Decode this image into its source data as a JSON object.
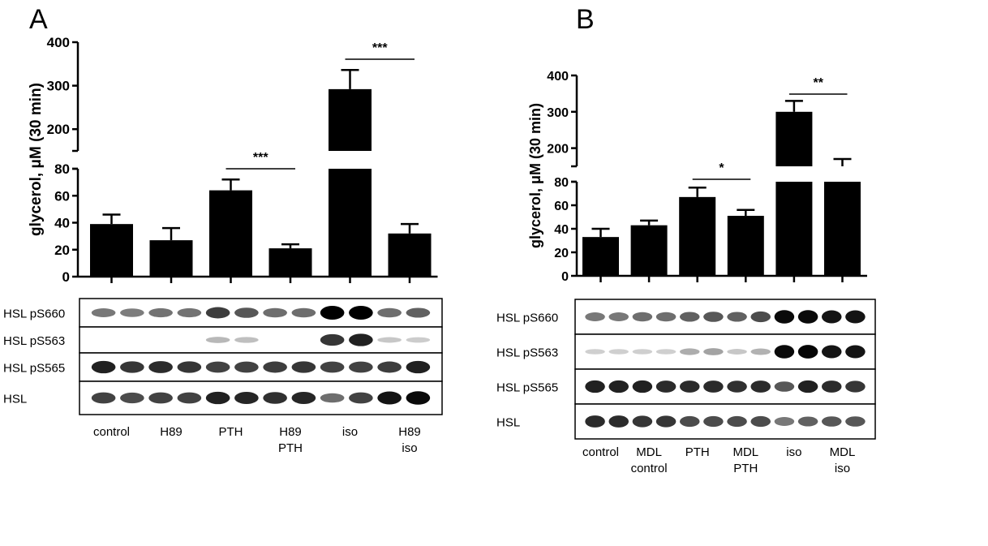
{
  "chart_data": [
    {
      "panel": "A",
      "type": "bar",
      "ylabel": "glycerol, μM (30 min)",
      "y_axis_break": {
        "lower_range": [
          0,
          80
        ],
        "upper_range": [
          150,
          400
        ]
      },
      "lower_ticks": [
        0,
        20,
        40,
        60,
        80
      ],
      "upper_ticks": [
        200,
        300,
        400
      ],
      "categories": [
        [
          "control"
        ],
        [
          "H89"
        ],
        [
          "PTH"
        ],
        [
          "H89",
          "PTH"
        ],
        [
          "iso"
        ],
        [
          "H89",
          "iso"
        ]
      ],
      "values": [
        39,
        27,
        64,
        21,
        292,
        32
      ],
      "errors": [
        7,
        9,
        8,
        3,
        44,
        7
      ],
      "significance": [
        {
          "from": 2,
          "to": 3,
          "label": "***"
        },
        {
          "from": 4,
          "to": 5,
          "label": "***"
        }
      ],
      "blot_labels": [
        "HSL pS660",
        "HSL pS563",
        "HSL pS565",
        "HSL"
      ],
      "band_intensity": [
        [
          0.45,
          0.42,
          0.47,
          0.47,
          0.72,
          0.6,
          0.5,
          0.5,
          1.0,
          1.0,
          0.5,
          0.55
        ],
        [
          0.0,
          0.0,
          0.0,
          0.0,
          0.15,
          0.12,
          0.0,
          0.0,
          0.75,
          0.85,
          0.08,
          0.06
        ],
        [
          0.85,
          0.75,
          0.8,
          0.75,
          0.7,
          0.7,
          0.72,
          0.75,
          0.7,
          0.7,
          0.72,
          0.85
        ],
        [
          0.7,
          0.65,
          0.7,
          0.7,
          0.85,
          0.82,
          0.78,
          0.82,
          0.5,
          0.7,
          0.9,
          0.95
        ]
      ]
    },
    {
      "panel": "B",
      "type": "bar",
      "ylabel": "glycerol, μM (30 min)",
      "y_axis_break": {
        "lower_range": [
          0,
          80
        ],
        "upper_range": [
          150,
          400
        ]
      },
      "lower_ticks": [
        0,
        20,
        40,
        60,
        80
      ],
      "upper_ticks": [
        200,
        300,
        400
      ],
      "categories": [
        [
          "control"
        ],
        [
          "MDL",
          "control"
        ],
        [
          "PTH"
        ],
        [
          "MDL",
          "PTH"
        ],
        [
          "iso"
        ],
        [
          "MDL",
          "iso"
        ]
      ],
      "values": [
        33,
        43,
        67,
        51,
        300,
        150
      ],
      "errors": [
        7,
        4,
        8,
        5,
        30,
        20
      ],
      "significance": [
        {
          "from": 2,
          "to": 3,
          "label": "*"
        },
        {
          "from": 4,
          "to": 5,
          "label": "**"
        }
      ],
      "blot_labels": [
        "HSL pS660",
        "HSL pS563",
        "HSL pS565",
        "HSL"
      ],
      "band_intensity": [
        [
          0.45,
          0.45,
          0.5,
          0.5,
          0.55,
          0.6,
          0.55,
          0.65,
          0.95,
          0.95,
          0.9,
          0.9
        ],
        [
          0.05,
          0.05,
          0.05,
          0.05,
          0.2,
          0.25,
          0.08,
          0.18,
          0.95,
          0.98,
          0.9,
          0.9
        ],
        [
          0.85,
          0.85,
          0.85,
          0.8,
          0.8,
          0.8,
          0.78,
          0.8,
          0.6,
          0.85,
          0.8,
          0.75
        ],
        [
          0.8,
          0.8,
          0.75,
          0.75,
          0.65,
          0.65,
          0.65,
          0.65,
          0.45,
          0.55,
          0.6,
          0.6
        ]
      ]
    }
  ]
}
